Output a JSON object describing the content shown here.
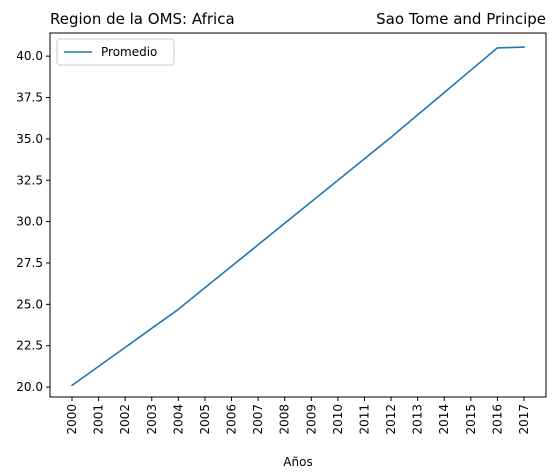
{
  "chart_data": {
    "type": "line",
    "title_left": "Region de la OMS: Africa",
    "title_right": "Sao Tome and Principe",
    "xlabel": "Años",
    "ylabel": "",
    "x": [
      "2000",
      "2001",
      "2002",
      "2003",
      "2004",
      "2005",
      "2006",
      "2007",
      "2008",
      "2009",
      "2010",
      "2011",
      "2012",
      "2013",
      "2014",
      "2015",
      "2016",
      "2017"
    ],
    "series": [
      {
        "name": "Promedio",
        "color": "#1f77b4",
        "values": [
          20.1,
          21.25,
          22.4,
          23.55,
          24.7,
          26.0,
          27.3,
          28.6,
          29.9,
          31.2,
          32.5,
          33.8,
          35.1,
          36.45,
          37.8,
          39.15,
          40.5,
          40.55
        ]
      }
    ],
    "yticks": [
      "20.0",
      "22.5",
      "25.0",
      "27.5",
      "30.0",
      "32.5",
      "35.0",
      "37.5",
      "40.0"
    ],
    "ylim": [
      19.4,
      41.4
    ],
    "legend_position": "top-left",
    "grid": false
  }
}
